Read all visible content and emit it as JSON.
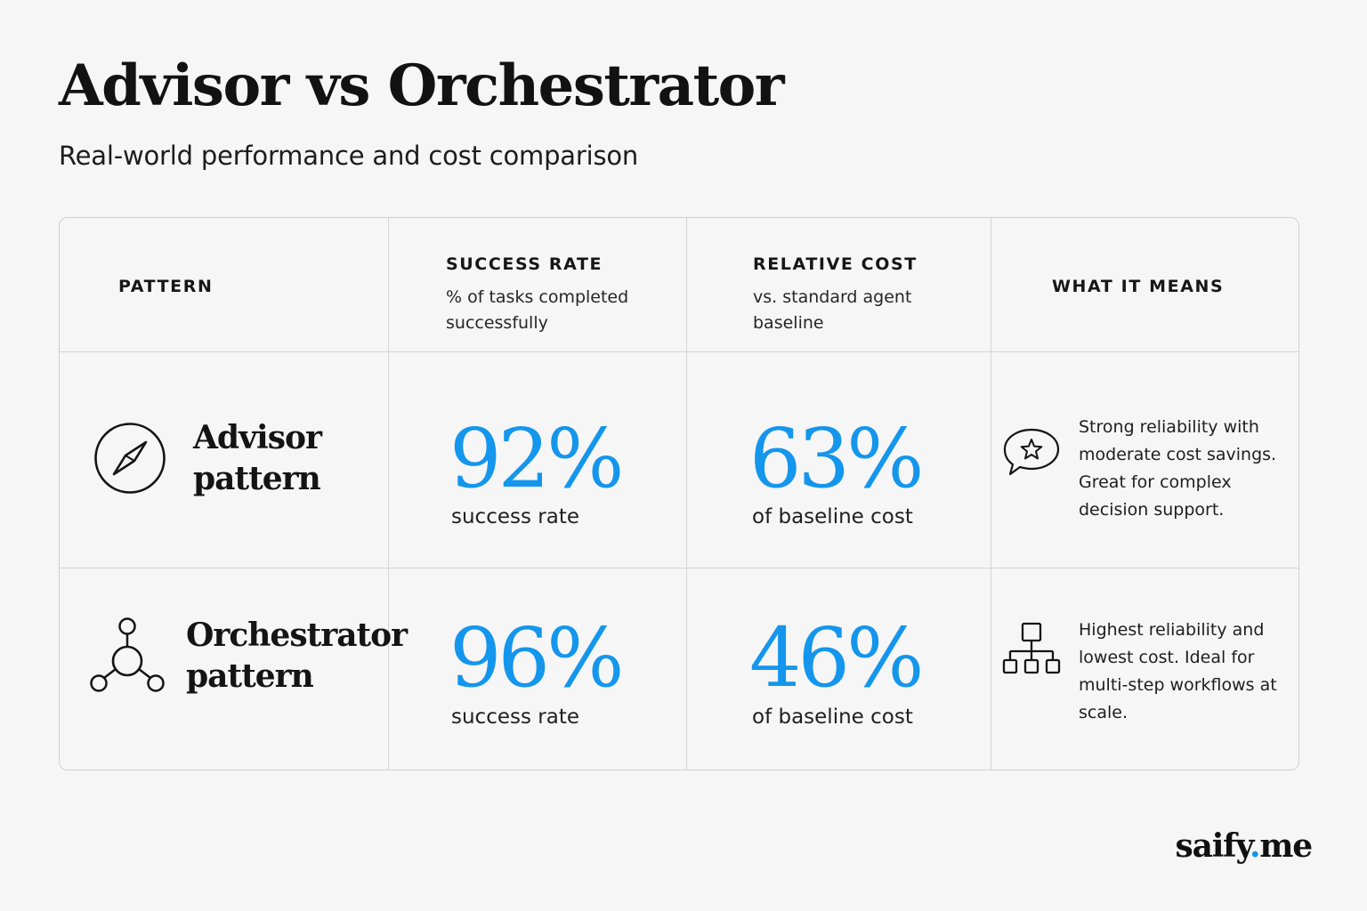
{
  "header": {
    "title": "Advisor vs Orchestrator",
    "subtitle": "Real-world performance and cost comparison"
  },
  "table": {
    "columns": [
      {
        "title": "PATTERN",
        "subtitle": ""
      },
      {
        "title": "SUCCESS RATE",
        "subtitle": "% of tasks completed successfully"
      },
      {
        "title": "RELATIVE COST",
        "subtitle": "vs. standard agent baseline"
      },
      {
        "title": "WHAT IT MEANS",
        "subtitle": ""
      }
    ],
    "rows": [
      {
        "icon": "compass-icon",
        "pattern_name": "Advisor pattern",
        "success_rate": "92%",
        "success_label": "success rate",
        "relative_cost": "63%",
        "cost_label": "of baseline cost",
        "means_icon": "star-speech-bubble-icon",
        "means": "Strong reliability with moderate cost savings. Great for complex decision support."
      },
      {
        "icon": "hub-network-icon",
        "pattern_name": "Orchestrator pattern",
        "success_rate": "96%",
        "success_label": "success rate",
        "relative_cost": "46%",
        "cost_label": "of baseline cost",
        "means_icon": "hierarchy-icon",
        "means": "Highest reliability and lowest cost. Ideal for multi-step workflows at scale."
      }
    ]
  },
  "brand": {
    "name": "saify",
    "dot": ".",
    "tld": "me"
  },
  "colors": {
    "accent": "#1496ec",
    "text": "#141414",
    "background": "#f6f6f6",
    "border": "#d4d4d4"
  }
}
